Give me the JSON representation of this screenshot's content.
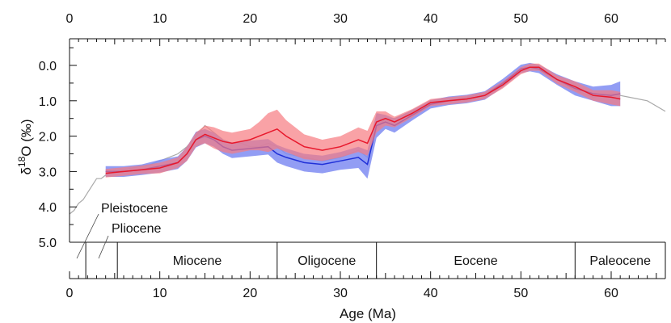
{
  "chart_data": {
    "type": "line",
    "xlabel": "Age (Ma)",
    "ylabel": "δ18O (‰)",
    "ylabel_parts": {
      "delta": "δ",
      "superscript": "18",
      "element": "O",
      "unit": " (‰)"
    },
    "xlim": [
      0,
      66
    ],
    "ylim_inverted": [
      5.0,
      -0.6
    ],
    "x_ticks": [
      "0",
      "10",
      "20",
      "30",
      "40",
      "50",
      "60"
    ],
    "y_ticks": [
      "0.0",
      "1.0",
      "2.0",
      "3.0",
      "4.0",
      "5.0"
    ],
    "y_tick_values": [
      0,
      1,
      2,
      3,
      4,
      5
    ],
    "x_tick_values": [
      0,
      10,
      20,
      30,
      40,
      50,
      60
    ],
    "epochs": [
      {
        "name": "Pleistocene",
        "start": 0,
        "end": 1.8
      },
      {
        "name": "Pliocene",
        "start": 1.8,
        "end": 5.3
      },
      {
        "name": "Miocene",
        "start": 5.3,
        "end": 23
      },
      {
        "name": "Oligocene",
        "start": 23,
        "end": 34
      },
      {
        "name": "Eocene",
        "start": 34,
        "end": 56
      },
      {
        "name": "Paleocene",
        "start": 56,
        "end": 66
      }
    ],
    "colors": {
      "raw": "#9a9a9a",
      "blue": "#2030d8",
      "blue_band": "#7f8cf2",
      "red": "#e8182c",
      "red_band": "#f77a80"
    },
    "series": [
      {
        "key": "raw",
        "x": [
          0,
          0.5,
          1,
          1.5,
          2,
          2.5,
          3,
          3.5,
          4,
          5,
          6,
          7,
          8,
          9,
          10,
          11,
          12,
          13,
          14,
          15,
          16,
          17,
          18,
          19,
          20,
          21,
          22,
          23,
          24,
          26,
          28,
          30,
          32,
          33,
          34,
          35,
          36,
          38,
          40,
          42,
          44,
          46,
          48,
          50,
          52,
          54,
          56,
          58,
          60,
          62,
          64,
          66
        ],
        "y": [
          4.2,
          4.1,
          3.9,
          3.8,
          3.6,
          3.4,
          3.2,
          3.2,
          3.1,
          3.0,
          2.95,
          2.9,
          2.85,
          2.8,
          2.7,
          2.6,
          2.5,
          2.3,
          2.0,
          1.7,
          1.9,
          2.1,
          2.2,
          2.2,
          2.3,
          2.3,
          2.2,
          2.3,
          2.5,
          2.6,
          2.7,
          2.6,
          2.4,
          2.6,
          1.8,
          1.5,
          1.5,
          1.3,
          1.1,
          1.0,
          0.9,
          0.8,
          0.5,
          0.1,
          0.1,
          0.4,
          0.7,
          0.9,
          0.8,
          0.9,
          1.0,
          1.3
        ]
      },
      {
        "key": "blue",
        "x": [
          4,
          6,
          8,
          10,
          12,
          13,
          14,
          15,
          16,
          17,
          18,
          20,
          22,
          23,
          24,
          26,
          28,
          30,
          32,
          33,
          34,
          35,
          36,
          38,
          40,
          42,
          44,
          46,
          48,
          50,
          51,
          52,
          54,
          56,
          58,
          60,
          61
        ],
        "y": [
          3.0,
          3.0,
          2.95,
          2.85,
          2.75,
          2.5,
          2.1,
          2.0,
          2.1,
          2.3,
          2.4,
          2.35,
          2.3,
          2.5,
          2.6,
          2.75,
          2.8,
          2.7,
          2.6,
          2.8,
          1.7,
          1.6,
          1.7,
          1.4,
          1.1,
          1.0,
          0.95,
          0.85,
          0.5,
          0.1,
          0.05,
          0.1,
          0.4,
          0.65,
          0.8,
          0.85,
          0.8
        ],
        "band": [
          0.15,
          0.15,
          0.15,
          0.18,
          0.18,
          0.2,
          0.22,
          0.2,
          0.2,
          0.2,
          0.22,
          0.22,
          0.22,
          0.25,
          0.25,
          0.25,
          0.25,
          0.25,
          0.3,
          0.4,
          0.35,
          0.2,
          0.2,
          0.15,
          0.12,
          0.12,
          0.12,
          0.12,
          0.12,
          0.12,
          0.12,
          0.12,
          0.15,
          0.2,
          0.2,
          0.3,
          0.35
        ]
      },
      {
        "key": "red",
        "x": [
          4,
          6,
          8,
          10,
          12,
          13,
          14,
          15,
          16,
          17,
          18,
          20,
          21,
          22,
          23,
          24,
          26,
          28,
          30,
          32,
          33,
          34,
          35,
          36,
          38,
          40,
          42,
          44,
          46,
          48,
          50,
          51,
          52,
          54,
          56,
          58,
          60,
          61
        ],
        "y": [
          3.05,
          3.0,
          2.95,
          2.9,
          2.75,
          2.5,
          2.1,
          1.95,
          2.05,
          2.15,
          2.2,
          2.1,
          2.0,
          1.9,
          1.8,
          2.0,
          2.3,
          2.4,
          2.3,
          2.1,
          2.2,
          1.6,
          1.5,
          1.6,
          1.35,
          1.05,
          1.0,
          0.95,
          0.85,
          0.55,
          0.15,
          0.05,
          0.05,
          0.4,
          0.6,
          0.85,
          0.9,
          0.95
        ],
        "band": [
          0.12,
          0.12,
          0.12,
          0.15,
          0.15,
          0.2,
          0.2,
          0.25,
          0.3,
          0.3,
          0.3,
          0.3,
          0.4,
          0.55,
          0.55,
          0.45,
          0.35,
          0.3,
          0.3,
          0.35,
          0.35,
          0.3,
          0.2,
          0.15,
          0.12,
          0.1,
          0.1,
          0.1,
          0.1,
          0.1,
          0.1,
          0.1,
          0.1,
          0.12,
          0.15,
          0.15,
          0.2,
          0.2
        ]
      }
    ]
  }
}
